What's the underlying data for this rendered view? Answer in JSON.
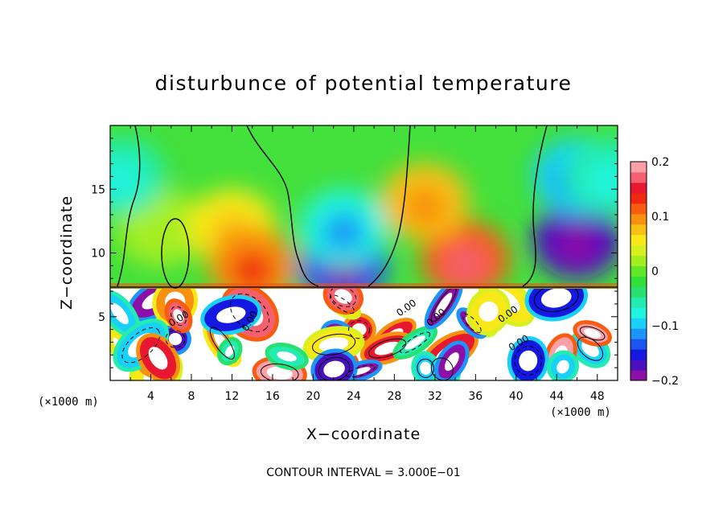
{
  "chart_data": {
    "type": "heatmap",
    "title": "disturbunce of potential temperature",
    "xlabel": "X−coordinate",
    "ylabel": "Z−coordinate",
    "x_unit_left": "(×1000 m)",
    "x_unit_right": "(×1000 m)",
    "xlim": [
      0,
      50
    ],
    "ylim": [
      0,
      20
    ],
    "x_ticks": [
      4,
      8,
      12,
      16,
      20,
      24,
      28,
      32,
      36,
      40,
      44,
      48
    ],
    "x_tick_labels": [
      "4",
      "8",
      "12",
      "16",
      "20",
      "24",
      "28",
      "32",
      "36",
      "40",
      "44",
      "48"
    ],
    "y_ticks": [
      5,
      10,
      15
    ],
    "y_tick_labels": [
      "5",
      "10",
      "15"
    ],
    "colorbar": {
      "range": [
        -0.2,
        0.2
      ],
      "ticks": [
        0.2,
        0.1,
        0,
        -0.1,
        -0.2
      ],
      "tick_labels": [
        "0.2",
        "0.1",
        "0",
        "−0.1",
        "−0.2"
      ],
      "colors": [
        "#8c10a8",
        "#4a10c0",
        "#1418e0",
        "#1c54f0",
        "#1c94f8",
        "#18d0f8",
        "#20f4e0",
        "#24ecb0",
        "#28e070",
        "#30e038",
        "#60e828",
        "#a4ee20",
        "#d8f020",
        "#f8e818",
        "#f8c014",
        "#f89010",
        "#f85c10",
        "#f02810",
        "#e81830",
        "#f46070",
        "#fca0a8"
      ]
    },
    "contour_labels": [
      "0.00",
      "0.00",
      "0.00",
      "0.00",
      "0.00",
      "0.00"
    ],
    "contour_interval_text": "CONTOUR INTERVAL = 3.000E−01",
    "field_blobs": [
      {
        "x": 5,
        "z": 12,
        "value": 0.02
      },
      {
        "x": 12,
        "z": 12,
        "value": 0.05
      },
      {
        "x": 14,
        "z": 9,
        "value": 0.1
      },
      {
        "x": 23,
        "z": 9,
        "value": -0.14
      },
      {
        "x": 23,
        "z": 12,
        "value": -0.08
      },
      {
        "x": 35,
        "z": 9.5,
        "value": 0.12
      },
      {
        "x": 31,
        "z": 14,
        "value": 0.07
      },
      {
        "x": 46,
        "z": 11,
        "value": -0.17
      },
      {
        "x": 46,
        "z": 16,
        "value": -0.1
      },
      {
        "x": 49,
        "z": 16,
        "value": -0.06
      },
      {
        "x": 1,
        "z": 16,
        "value": -0.05
      }
    ]
  }
}
